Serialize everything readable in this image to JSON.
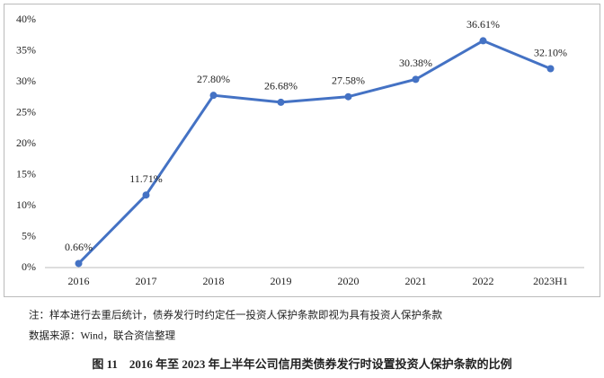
{
  "chart_data": {
    "type": "line",
    "categories": [
      "2016",
      "2017",
      "2018",
      "2019",
      "2020",
      "2021",
      "2022",
      "2023H1"
    ],
    "series": [
      {
        "color": "#4472c4",
        "values": [
          0.66,
          11.71,
          27.8,
          26.68,
          27.58,
          30.38,
          36.61,
          32.1
        ],
        "value_labels": [
          "0.66%",
          "11.71%",
          "27.80%",
          "26.68%",
          "27.58%",
          "30.38%",
          "36.61%",
          "32.10%"
        ]
      }
    ],
    "ylim": [
      0,
      40
    ],
    "yticks": [
      {
        "value": 0,
        "label": "0%"
      },
      {
        "value": 5,
        "label": "5%"
      },
      {
        "value": 10,
        "label": "10%"
      },
      {
        "value": 15,
        "label": "15%"
      },
      {
        "value": 20,
        "label": "20%"
      },
      {
        "value": 25,
        "label": "25%"
      },
      {
        "value": 30,
        "label": "30%"
      },
      {
        "value": 35,
        "label": "35%"
      },
      {
        "value": 40,
        "label": "40%"
      }
    ],
    "grid": false,
    "notes": [
      "注：样本进行去重后统计，债券发行时约定任一投资人保护条款即视为具有投资人保护条款",
      "数据来源：Wind，联合资信整理"
    ],
    "caption": "图 11　2016 年至 2023 年上半年公司信用类债券发行时设置投资人保护条款的比例"
  }
}
